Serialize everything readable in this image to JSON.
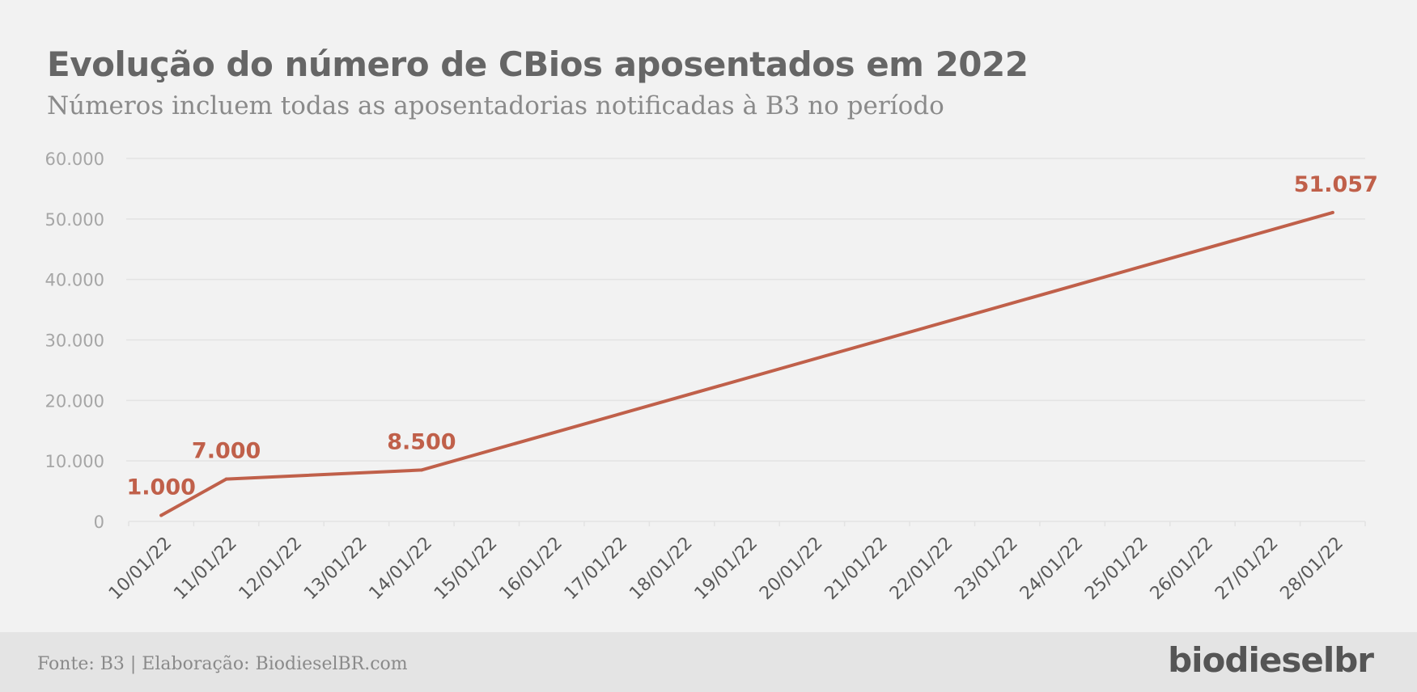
{
  "header": {
    "title": "Evolução do número de CBios aposentados em 2022",
    "subtitle": "Números incluem todas as aposentadorias notificadas à B3 no período"
  },
  "footer": {
    "source": "Fonte: B3 | Elaboração: BiodieselBR.com",
    "logo_text": "biodieselbr"
  },
  "colors": {
    "line": "#c0604a",
    "axis_text": "#a6a6a6",
    "category_text": "#595959",
    "grid": "#e3e3e3"
  },
  "chart_data": {
    "type": "line",
    "title": "",
    "xlabel": "",
    "ylabel": "",
    "ylim": [
      0,
      60000
    ],
    "yticks": [
      0,
      10000,
      20000,
      30000,
      40000,
      50000,
      60000
    ],
    "ytick_labels": [
      "0",
      "10.000",
      "20.000",
      "30.000",
      "40.000",
      "50.000",
      "60.000"
    ],
    "grid": true,
    "categories": [
      "10/01/22",
      "11/01/22",
      "12/01/22",
      "13/01/22",
      "14/01/22",
      "15/01/22",
      "16/01/22",
      "17/01/22",
      "18/01/22",
      "19/01/22",
      "20/01/22",
      "21/01/22",
      "22/01/22",
      "23/01/22",
      "24/01/22",
      "25/01/22",
      "26/01/22",
      "27/01/22",
      "28/01/22"
    ],
    "series": [
      {
        "points": [
          {
            "x": "10/01/22",
            "y": 1000,
            "label": "1.000"
          },
          {
            "x": "11/01/22",
            "y": 7000,
            "label": "7.000"
          },
          {
            "x": "14/01/22",
            "y": 8500,
            "label": "8.500"
          },
          {
            "x": "28/01/22",
            "y": 51057,
            "label": "51.057"
          }
        ]
      }
    ]
  }
}
